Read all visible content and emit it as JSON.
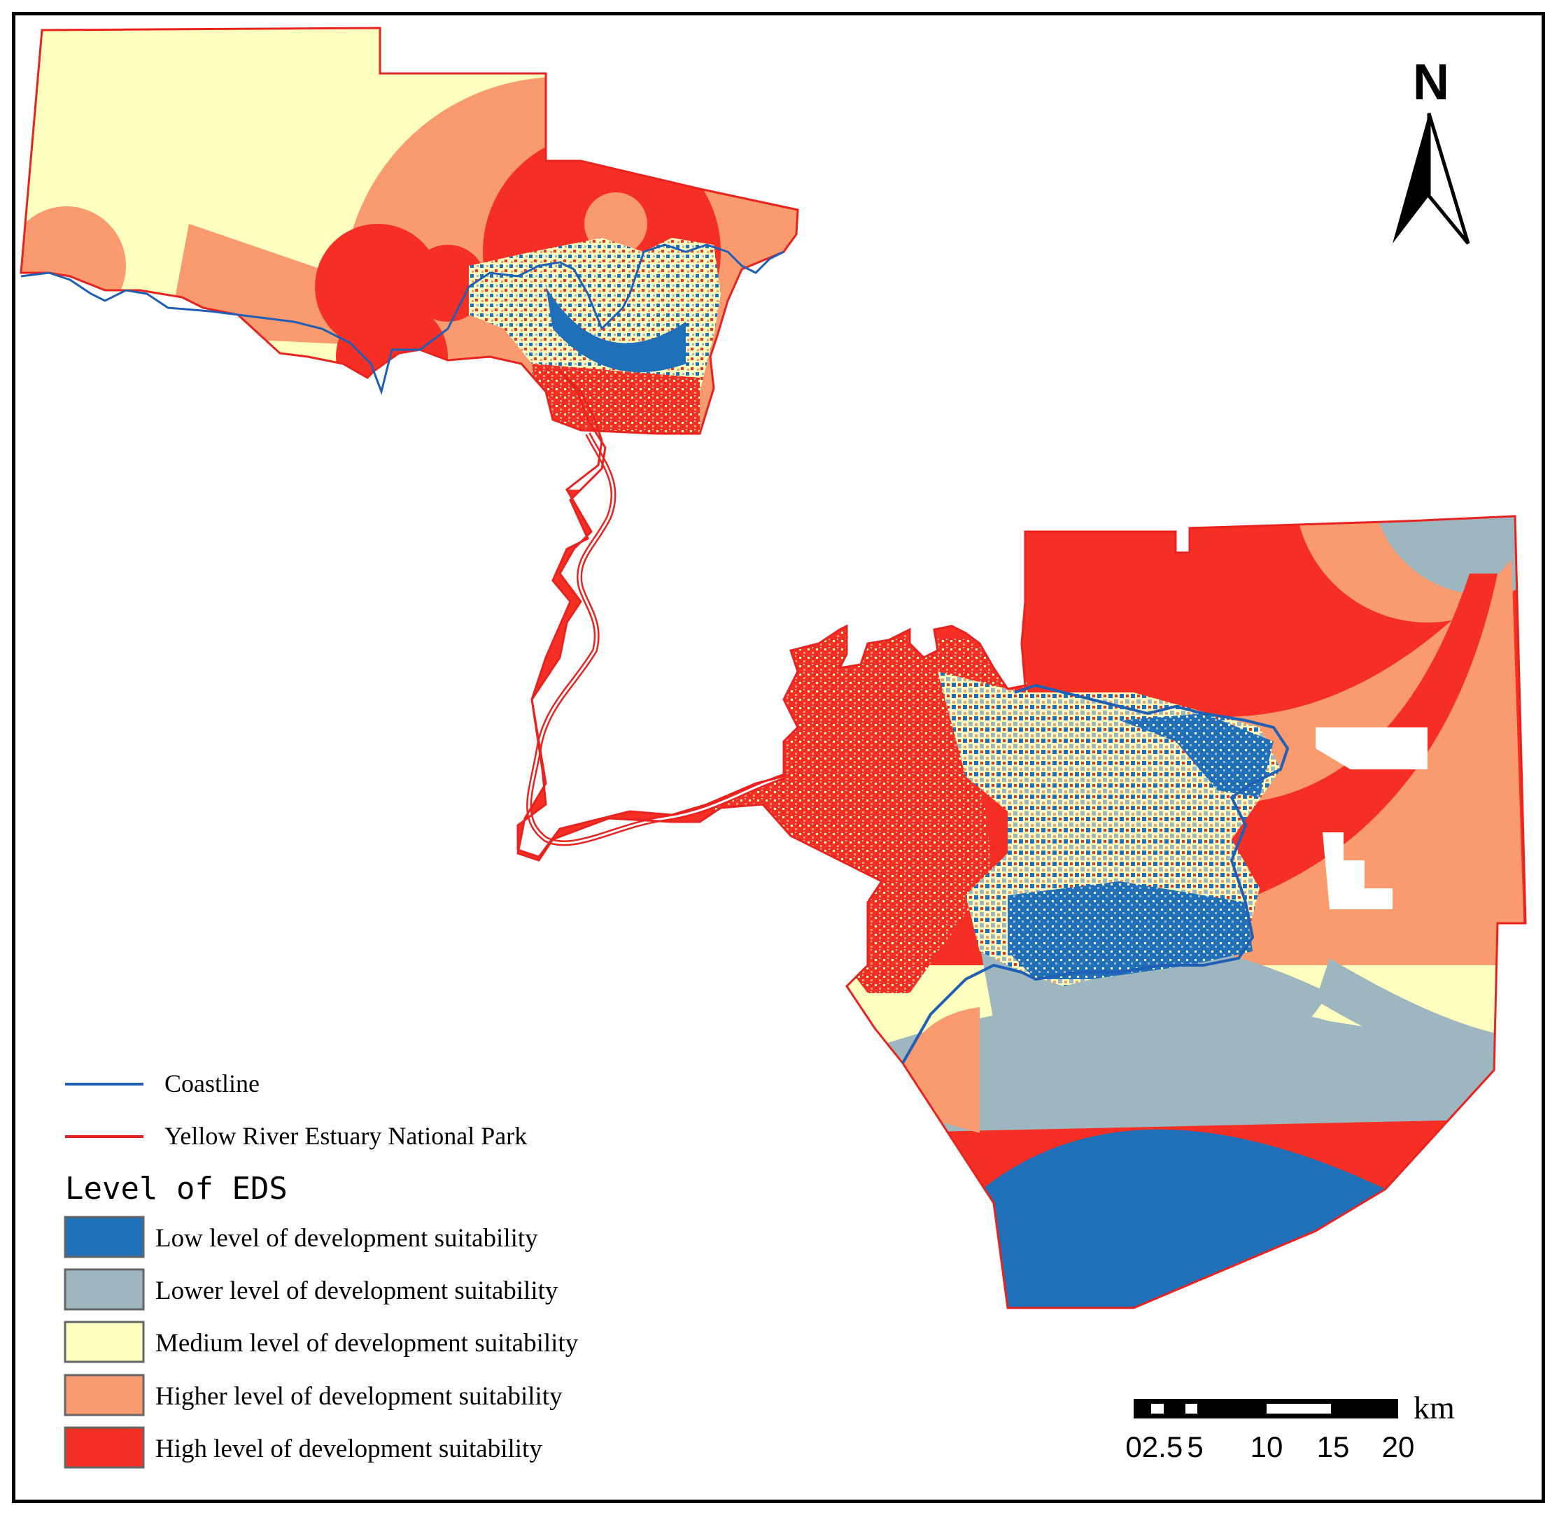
{
  "map": {
    "north_label": "N",
    "colors": {
      "low": "#1f70b8",
      "lower": "#9db6c0",
      "medium": "#ffffc0",
      "higher": "#f99a6f",
      "high": "#f52f23",
      "coastline": "#1f5fb5",
      "park_boundary": "#e8231f"
    },
    "line_legend": [
      {
        "label": "Coastline",
        "color": "#1f5fb5"
      },
      {
        "label": "Yellow River Estuary National Park",
        "color": "#e8231f"
      }
    ],
    "legend": {
      "title": "Level of EDS",
      "items": [
        {
          "label": "Low level of development suitability",
          "color": "#1f70b8"
        },
        {
          "label": "Lower level of development suitability",
          "color": "#9db6c0"
        },
        {
          "label": "Medium level of development suitability",
          "color": "#ffffc0"
        },
        {
          "label": "Higher level of development suitability",
          "color": "#f99a6f"
        },
        {
          "label": "High level of development suitability",
          "color": "#f52f23"
        }
      ]
    },
    "scale_bar": {
      "labels": [
        "0",
        "2.5",
        "5",
        "10",
        "15",
        "20"
      ],
      "unit": "km"
    }
  }
}
